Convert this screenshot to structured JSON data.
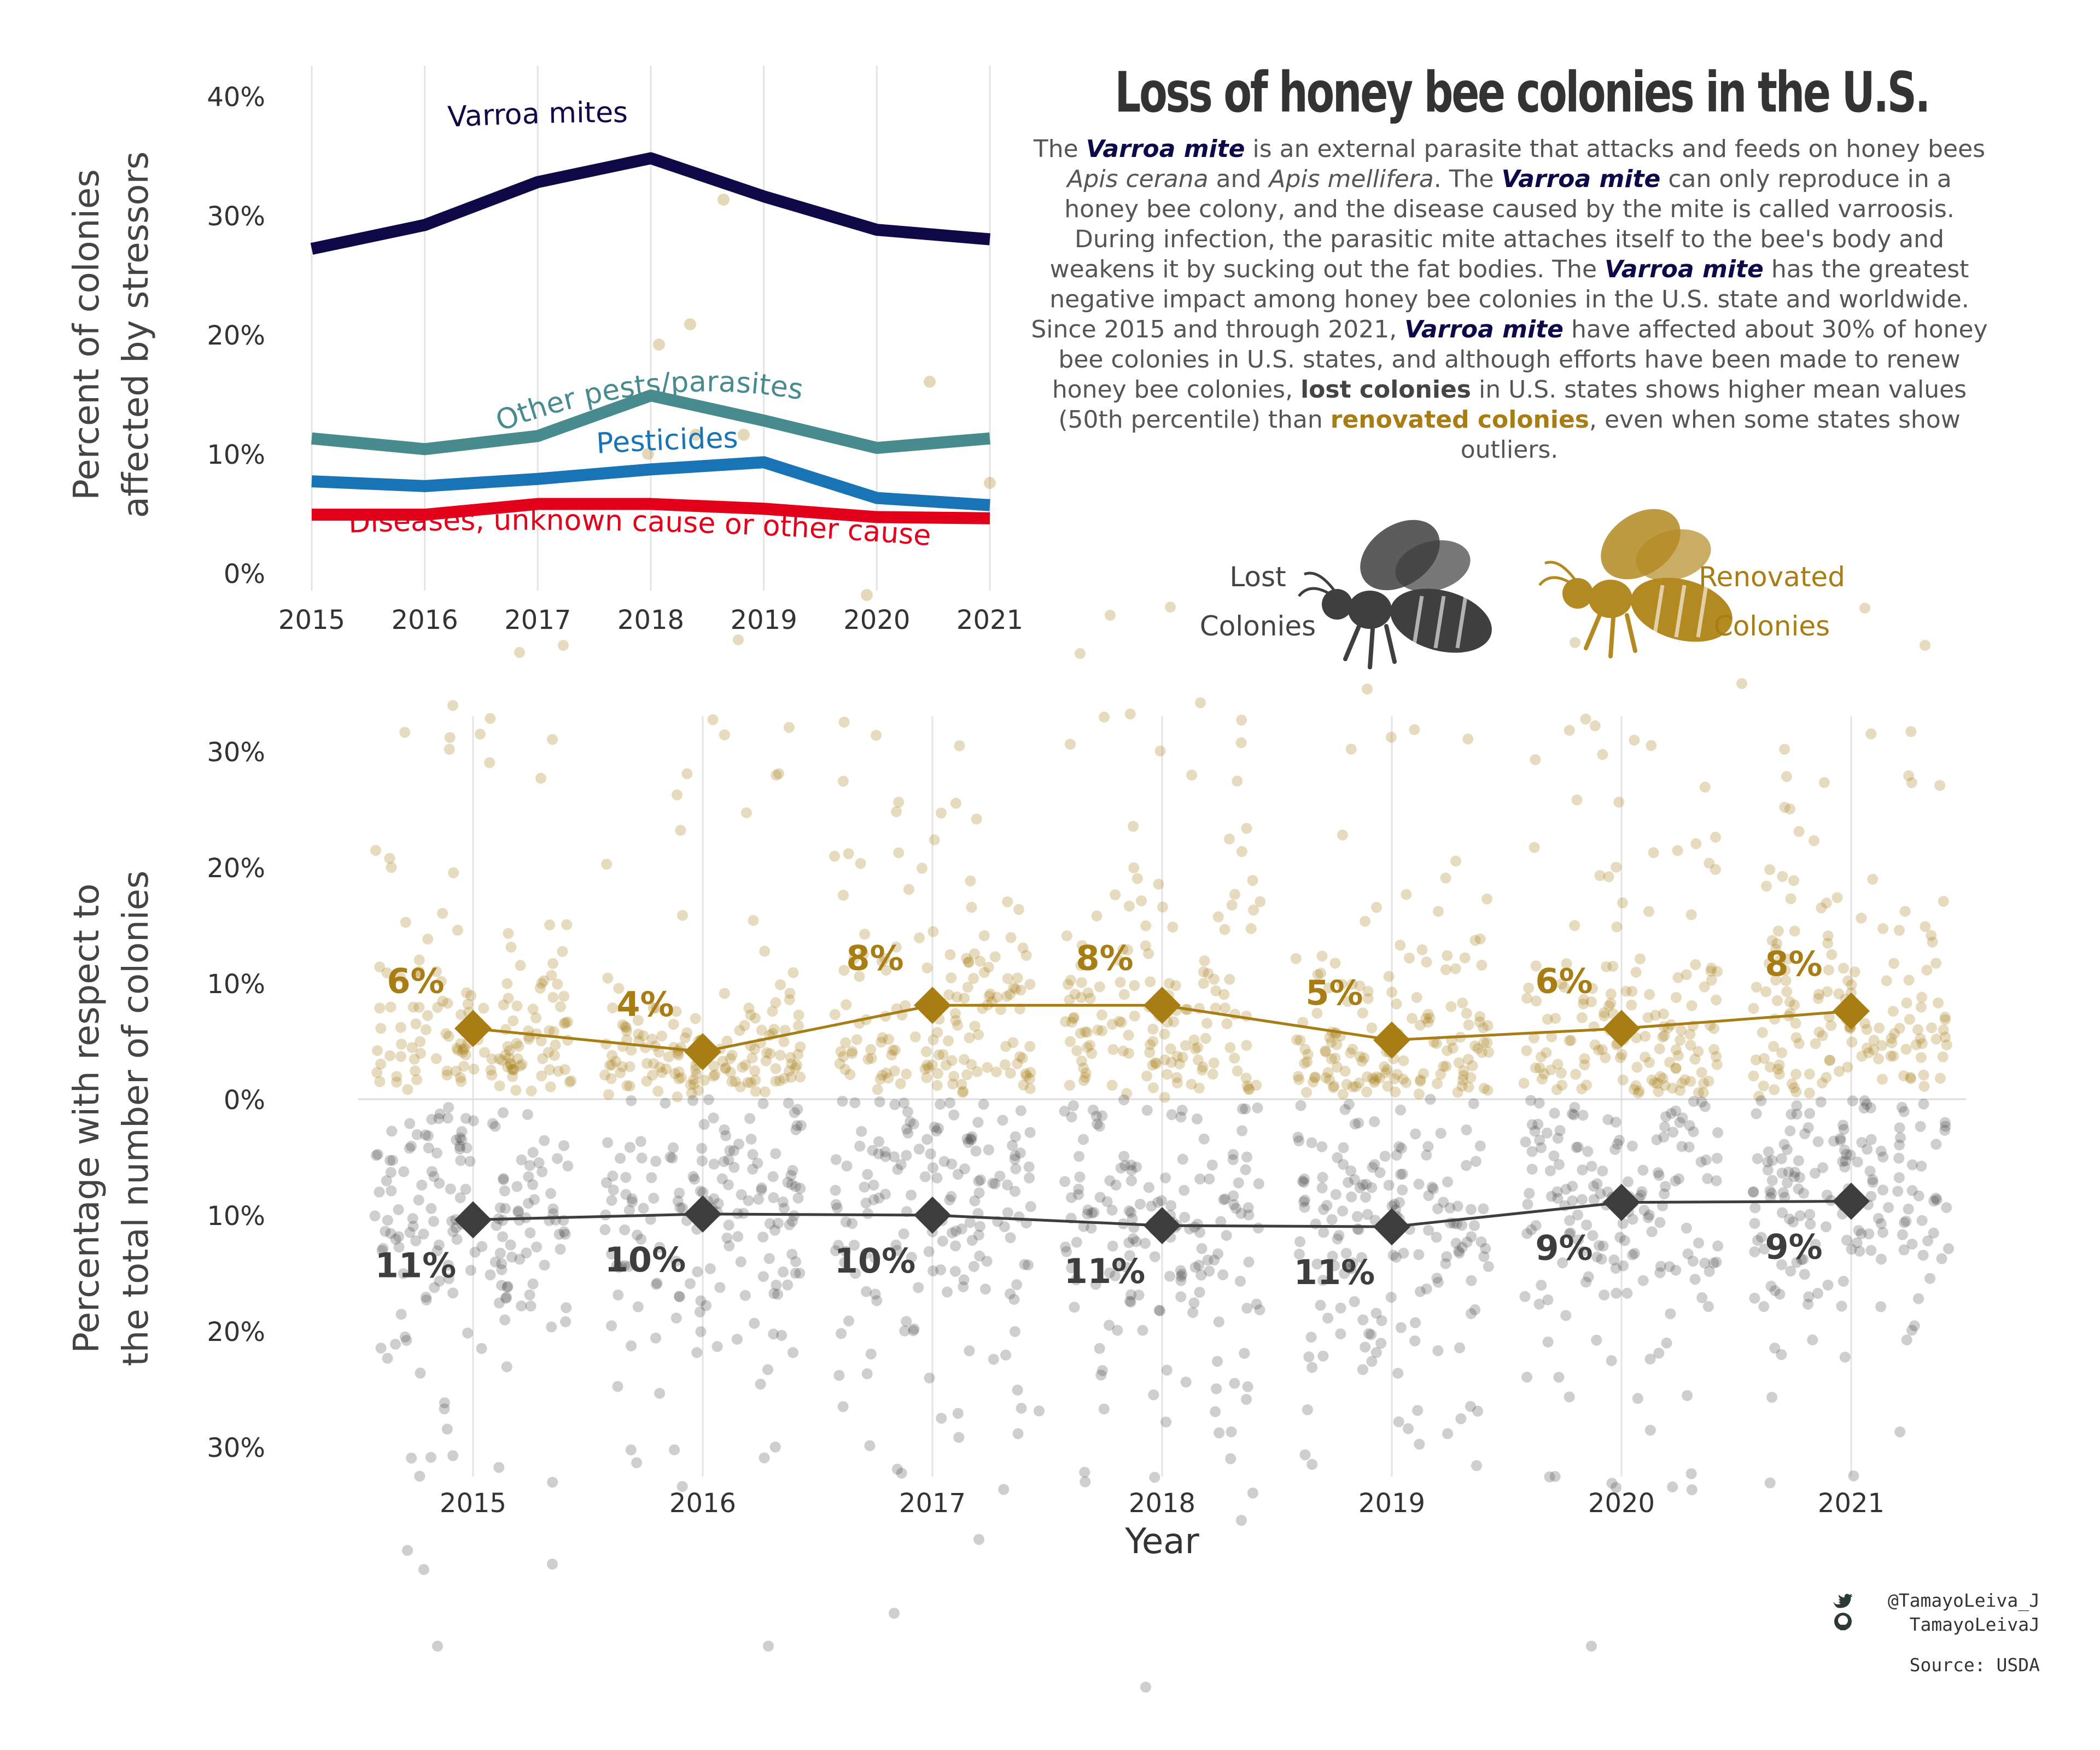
{
  "title": "Loss of honey bee colonies in the U.S.",
  "paragraph": [
    {
      "t": "The "
    },
    {
      "t": "Varroa mite",
      "s": "mite"
    },
    {
      "t": " is an external parasite that attacks and feeds on honey bees "
    },
    {
      "t": "Apis cerana",
      "s": "it"
    },
    {
      "t": " and "
    },
    {
      "t": "Apis mellifera",
      "s": "it"
    },
    {
      "t": ". The "
    },
    {
      "t": "Varroa mite",
      "s": "mite"
    },
    {
      "t": " can only reproduce in a honey bee colony, and the disease caused by the mite is called varroosis. During infection, the parasitic mite attaches itself to the bee's body and weakens it by sucking out the fat bodies. The "
    },
    {
      "t": "Varroa mite",
      "s": "mite"
    },
    {
      "t": " has the greatest negative impact among honey bee colonies in the U.S. state and worldwide. Since 2015 and through 2021, "
    },
    {
      "t": "Varroa mite",
      "s": "mite"
    },
    {
      "t": " have affected about 30% of honey bee colonies in U.S. states, and although efforts have been made to renew honey bee colonies, "
    },
    {
      "t": "lost colonies",
      "s": "lost"
    },
    {
      "t": " in U.S. states shows higher mean values (50th percentile) than "
    },
    {
      "t": "renovated colonies",
      "s": "reno"
    },
    {
      "t": ", even when some states show outliers."
    }
  ],
  "legend": {
    "lost_line1": "Lost",
    "lost_line2": "Colonies",
    "reno_line1": "Renovated",
    "reno_line2": "Colonies",
    "lost_icon": "bee-icon",
    "reno_icon": "bee-icon"
  },
  "credits": {
    "twitter": "@TamayoLeiva_J",
    "twitter_icon": "twitter-icon",
    "github": "TamayoLeivaJ",
    "github_icon": "github-icon",
    "source": "Source: USDA"
  },
  "colors": {
    "varroa": "#0f0a47",
    "other_pests": "#488b8f",
    "pesticides": "#1874b5",
    "diseases": "#e3001b",
    "renovated": "#a77d14",
    "lost": "#3d3d3d",
    "grid": "#e3e3e3",
    "axis_text": "#333333"
  },
  "chart_data": [
    {
      "type": "line",
      "x": [
        2015,
        2016,
        2017,
        2018,
        2019,
        2020,
        2021
      ],
      "series": [
        {
          "name": "Varroa mites",
          "values": [
            27.2,
            29.2,
            32.8,
            34.8,
            31.6,
            28.8,
            28.0
          ]
        },
        {
          "name": "Other pests/parasites",
          "values": [
            11.3,
            10.4,
            11.5,
            14.9,
            12.8,
            10.5,
            11.3
          ]
        },
        {
          "name": "Pesticides",
          "values": [
            7.7,
            7.3,
            7.9,
            8.7,
            9.3,
            6.3,
            5.7
          ]
        },
        {
          "name": "Diseases, unknown cause or other cause",
          "values": [
            4.9,
            4.9,
            5.8,
            5.8,
            5.4,
            4.7,
            4.6
          ]
        }
      ],
      "xlabel": "",
      "ylabel": "Percent of colonies affected by stressors",
      "ylim": [
        0,
        40
      ],
      "yticks": [
        "0%",
        "10%",
        "20%",
        "30%",
        "40%"
      ],
      "xticks": [
        "2015",
        "2016",
        "2017",
        "2018",
        "2019",
        "2020",
        "2021"
      ],
      "grid": "vertical"
    },
    {
      "type": "scatter",
      "x": [
        2015,
        2016,
        2017,
        2018,
        2019,
        2020,
        2021
      ],
      "series": [
        {
          "name": "Renovated Colonies",
          "means": [
            6.1,
            4.1,
            8.1,
            8.1,
            5.1,
            6.1,
            7.6
          ],
          "labels": [
            "6%",
            "4%",
            "8%",
            "8%",
            "5%",
            "6%",
            "8%"
          ]
        },
        {
          "name": "Lost Colonies",
          "means": [
            -10.4,
            -9.9,
            -10.0,
            -10.9,
            -11.0,
            -8.9,
            -8.8
          ],
          "labels": [
            "11%",
            "10%",
            "10%",
            "11%",
            "11%",
            "9%",
            "9%"
          ]
        }
      ],
      "xlabel": "Year",
      "ylabel": "Percentage with respect to the total number of colonies",
      "ylim": [
        -30,
        30
      ],
      "yticks": [
        "30%",
        "20%",
        "10%",
        "0%",
        "10%",
        "20%",
        "30%"
      ],
      "xticks": [
        "2015",
        "2016",
        "2017",
        "2018",
        "2019",
        "2020",
        "2021"
      ],
      "grid": "vertical",
      "points": "jittered state-level values, shown as semi-transparent dots"
    }
  ]
}
